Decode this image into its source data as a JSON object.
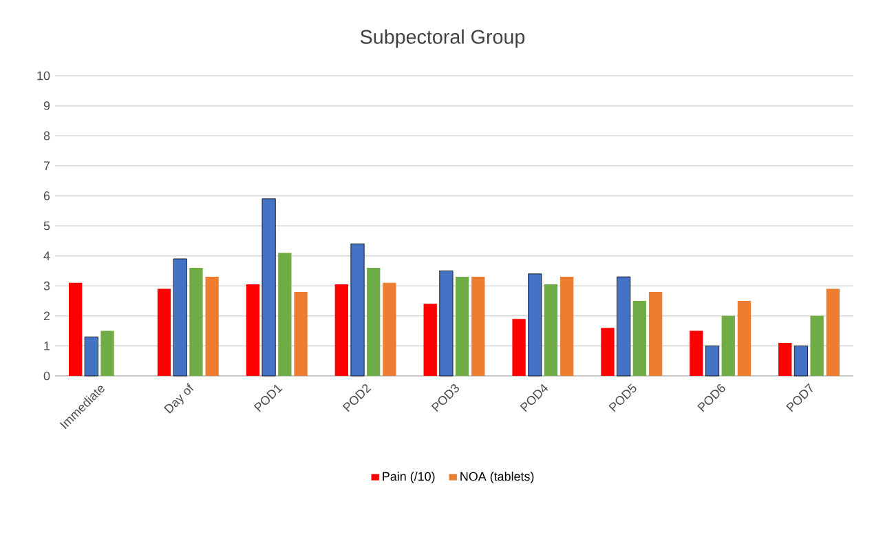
{
  "chart_data": {
    "type": "bar",
    "title": "Subpectoral Group",
    "categories": [
      "Immediate",
      "Day of",
      "POD1",
      "POD2",
      "POD3",
      "POD4",
      "POD5",
      "POD6",
      "POD7"
    ],
    "series": [
      {
        "name": "Pain (/10)",
        "color": "#ff0000",
        "values": [
          3.1,
          2.9,
          3.05,
          3.05,
          2.4,
          1.9,
          1.6,
          1.5,
          1.1
        ]
      },
      {
        "color": "#4472c4",
        "values": [
          1.3,
          3.9,
          5.9,
          4.4,
          3.5,
          3.4,
          3.3,
          1.0,
          1.0
        ]
      },
      {
        "color": "#70ad47",
        "values": [
          1.5,
          3.6,
          4.1,
          3.6,
          3.3,
          3.05,
          2.5,
          2.0,
          2.0
        ]
      },
      {
        "name": "NOA (tablets)",
        "color": "#ed7d31",
        "values": [
          null,
          3.3,
          2.8,
          3.1,
          3.3,
          3.3,
          2.8,
          2.5,
          2.9
        ]
      }
    ],
    "ylim": [
      0,
      10
    ],
    "yticks": [
      0,
      1,
      2,
      3,
      4,
      5,
      6,
      7,
      8,
      9,
      10
    ],
    "grid": "y",
    "legend": "bottom"
  }
}
